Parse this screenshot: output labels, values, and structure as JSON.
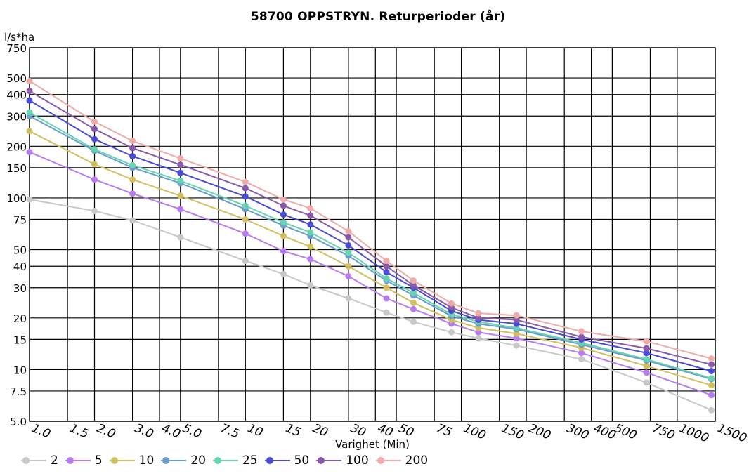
{
  "chart_data": {
    "type": "line",
    "title": "58700 OPPSTRYN. Returperioder (år)",
    "xlabel": "Varighet  (Min)",
    "ylabel": "l/s*ha",
    "x_scale": "log",
    "y_scale": "log",
    "xlim": [
      1.0,
      1500
    ],
    "ylim": [
      5.0,
      750
    ],
    "grid": true,
    "legend_position": "bottom-left",
    "x_ticks": [
      "1.0",
      "1.5",
      "2.0",
      "3.0",
      "4.0",
      "5.0",
      "7.5",
      "10",
      "15",
      "20",
      "30",
      "40",
      "50",
      "75",
      "100",
      "150",
      "200",
      "300",
      "400",
      "500",
      "750",
      "1000",
      "1500"
    ],
    "y_ticks": [
      "5.0",
      "7.5",
      "10",
      "15",
      "20",
      "30",
      "40",
      "50",
      "75",
      "100",
      "150",
      "200",
      "300",
      "400",
      "500",
      "750"
    ],
    "x": [
      1,
      2,
      3,
      5,
      10,
      15,
      20,
      30,
      45,
      60,
      90,
      120,
      180,
      360,
      720,
      1440
    ],
    "series": [
      {
        "name": "2",
        "color": "#c8c8c8",
        "values": [
          98,
          84,
          74,
          59,
          43,
          36,
          31,
          26,
          21.5,
          19,
          16.5,
          15.2,
          13.8,
          11.5,
          8.4,
          5.8
        ]
      },
      {
        "name": "5",
        "color": "#b97cf0",
        "values": [
          185,
          128,
          106,
          86,
          62,
          49,
          44,
          35,
          26,
          22.5,
          18.5,
          16.5,
          15.2,
          12.5,
          9.6,
          7.1
        ]
      },
      {
        "name": "10",
        "color": "#d2c060",
        "values": [
          245,
          157,
          128,
          103,
          75,
          60,
          52,
          40,
          30,
          24.5,
          19.5,
          17.5,
          16.2,
          13.4,
          10.5,
          8.1
        ]
      },
      {
        "name": "20",
        "color": "#6a9ccc",
        "values": [
          300,
          188,
          150,
          122,
          86,
          69,
          60,
          46,
          33,
          27,
          20.5,
          18.5,
          17.2,
          14,
          11.3,
          8.8
        ]
      },
      {
        "name": "25",
        "color": "#66d4b0",
        "values": [
          315,
          192,
          155,
          126,
          90,
          72,
          63,
          48,
          34,
          28,
          21,
          19,
          17.5,
          14.3,
          11.5,
          8.9
        ]
      },
      {
        "name": "50",
        "color": "#4a4ad8",
        "values": [
          370,
          220,
          175,
          140,
          102,
          80,
          70,
          53,
          37,
          30,
          22,
          19.5,
          18.5,
          15,
          12.5,
          9.8
        ]
      },
      {
        "name": "100",
        "color": "#8a5aaa",
        "values": [
          420,
          252,
          195,
          156,
          114,
          90,
          79,
          59,
          40,
          31,
          23,
          20,
          19.5,
          15.5,
          13.3,
          10.7
        ]
      },
      {
        "name": "200",
        "color": "#f0aaaa",
        "values": [
          480,
          278,
          215,
          170,
          124,
          98,
          87,
          64,
          43,
          33,
          24.3,
          21.3,
          20.7,
          16.7,
          14.6,
          11.6
        ]
      }
    ]
  }
}
